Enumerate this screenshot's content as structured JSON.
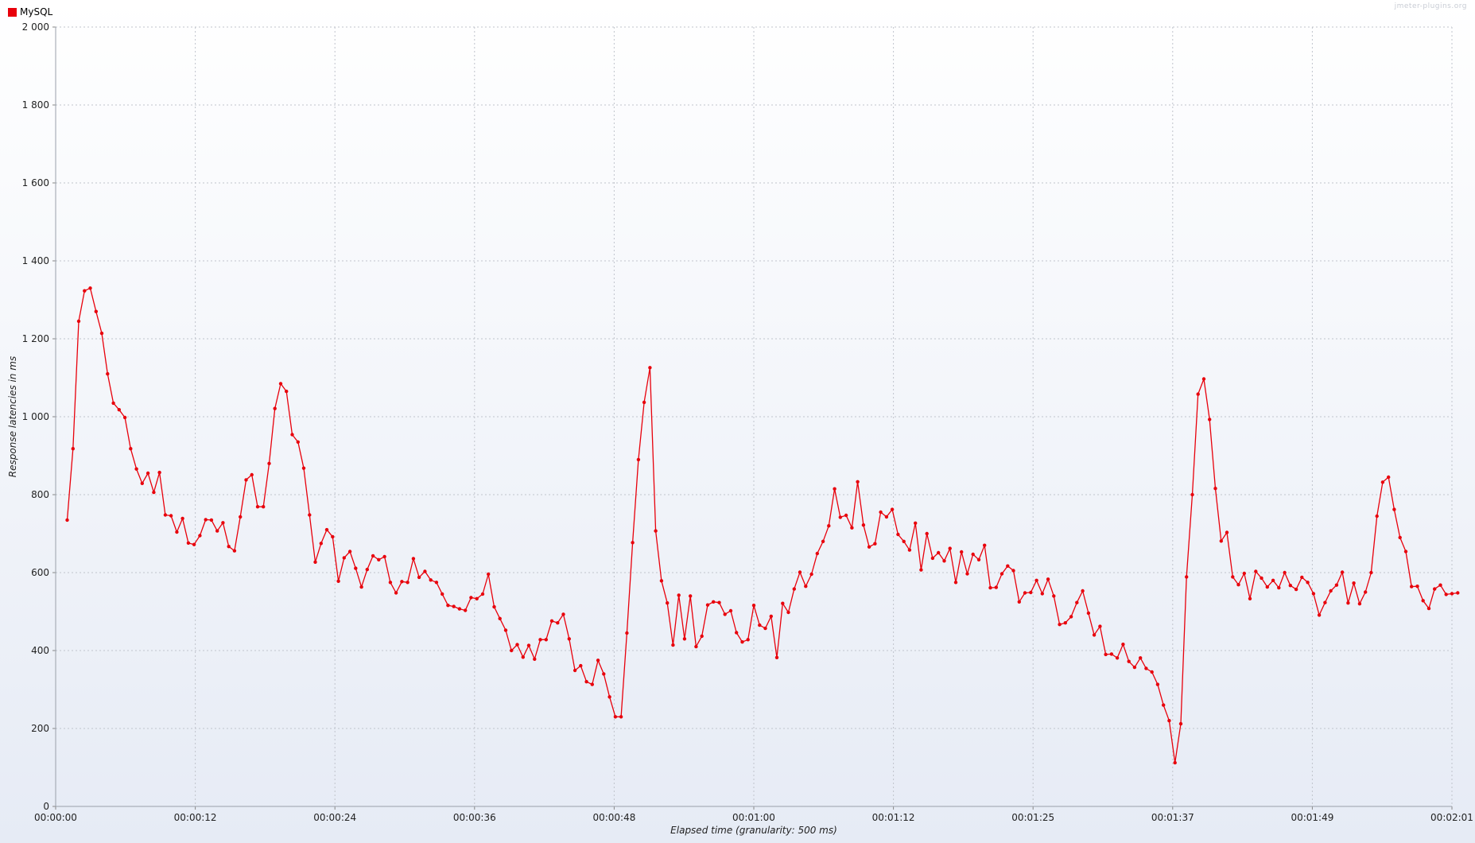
{
  "watermark": "jmeter-plugins.org",
  "colors": {
    "series": "#e8000b",
    "grid": "#c0c4cc"
  },
  "chart_data": {
    "type": "line",
    "title": "",
    "xlabel": "Elapsed time (granularity: 500 ms)",
    "ylabel": "Response latencies in ms",
    "ylim": [
      0,
      2000
    ],
    "xlim_seconds": [
      0,
      121
    ],
    "grid": true,
    "legend_position": "top-left",
    "x_tick_labels": [
      "00:00:00",
      "00:00:12",
      "00:00:24",
      "00:00:36",
      "00:00:48",
      "00:01:00",
      "00:01:12",
      "00:01:25",
      "00:01:37",
      "00:01:49",
      "00:02:01"
    ],
    "y_tick_labels": [
      "0",
      "200",
      "400",
      "600",
      "800",
      "1 000",
      "1 200",
      "1 400",
      "1 600",
      "1 800",
      "2 000"
    ],
    "y_ticks": [
      0,
      200,
      400,
      600,
      800,
      1000,
      1200,
      1400,
      1600,
      1800,
      2000
    ],
    "series": [
      {
        "name": "MySQL",
        "color": "#e8000b",
        "x_start_s": 1,
        "x_step_s": 0.5,
        "values": [
          735,
          918,
          1245,
          1323,
          1330,
          1270,
          1214,
          1110,
          1035,
          1018,
          998,
          918,
          866,
          829,
          855,
          806,
          857,
          748,
          746,
          704,
          739,
          676,
          672,
          695,
          736,
          735,
          707,
          728,
          667,
          656,
          743,
          838,
          851,
          769,
          769,
          880,
          1021,
          1085,
          1065,
          954,
          935,
          868,
          748,
          627,
          675,
          710,
          692,
          578,
          638,
          654,
          611,
          563,
          608,
          643,
          633,
          641,
          575,
          548,
          577,
          575,
          636,
          588,
          603,
          581,
          575,
          545,
          516,
          513,
          507,
          503,
          536,
          533,
          545,
          596,
          512,
          482,
          452,
          400,
          415,
          383,
          413,
          378,
          428,
          428,
          476,
          471,
          493,
          430,
          349,
          361,
          320,
          313,
          375,
          340,
          281,
          230,
          230,
          445,
          677,
          890,
          1037,
          1126,
          707,
          579,
          522,
          414,
          542,
          430,
          540,
          410,
          437,
          517,
          525,
          523,
          493,
          502,
          446,
          422,
          428,
          516,
          465,
          457,
          488,
          382,
          521,
          498,
          558,
          601,
          565,
          596,
          649,
          680,
          720,
          815,
          742,
          747,
          715,
          833,
          722,
          666,
          674,
          755,
          743,
          762,
          698,
          680,
          658,
          727,
          607,
          700,
          637,
          651,
          630,
          662,
          575,
          653,
          597,
          647,
          633,
          670,
          561,
          562,
          597,
          617,
          605,
          525,
          548,
          549,
          580,
          546,
          583,
          540,
          467,
          471,
          487,
          523,
          553,
          496,
          440,
          462,
          390,
          391,
          381,
          416,
          372,
          357,
          381,
          354,
          345,
          313,
          260,
          220,
          112,
          212,
          589,
          800,
          1058,
          1097,
          993,
          816,
          681,
          703,
          589,
          569,
          598,
          533,
          603,
          586,
          563,
          580,
          561,
          600,
          567,
          557,
          588,
          575,
          546,
          491,
          523,
          553,
          568,
          601,
          522,
          573,
          520,
          550,
          600,
          745,
          832,
          845,
          762,
          690,
          654,
          564,
          565,
          528,
          508,
          558,
          568,
          544,
          546,
          548
        ]
      }
    ]
  }
}
